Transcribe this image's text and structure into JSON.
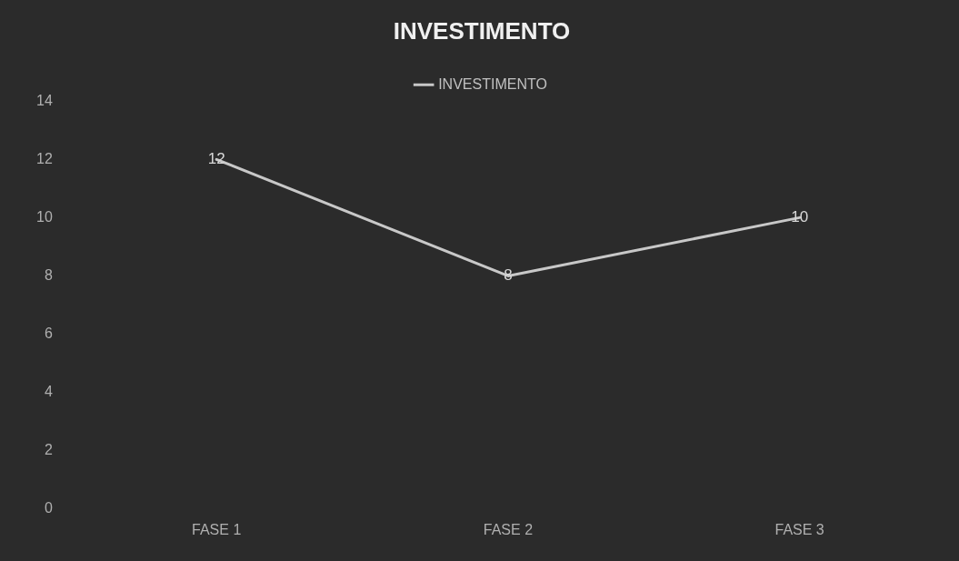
{
  "chart_data": {
    "type": "line",
    "title": "INVESTIMENTO",
    "categories": [
      "FASE 1",
      "FASE 2",
      "FASE 3"
    ],
    "series": [
      {
        "name": "INVESTIMENTO",
        "color": "#c8c8c8",
        "values": [
          12,
          8,
          10
        ]
      }
    ],
    "ylim": [
      0,
      14
    ],
    "yticks": [
      0,
      2,
      4,
      6,
      8,
      10,
      12,
      14
    ],
    "grid": false,
    "legend": "top",
    "marker": "none",
    "line_style": "solid",
    "data_labels": true
  }
}
